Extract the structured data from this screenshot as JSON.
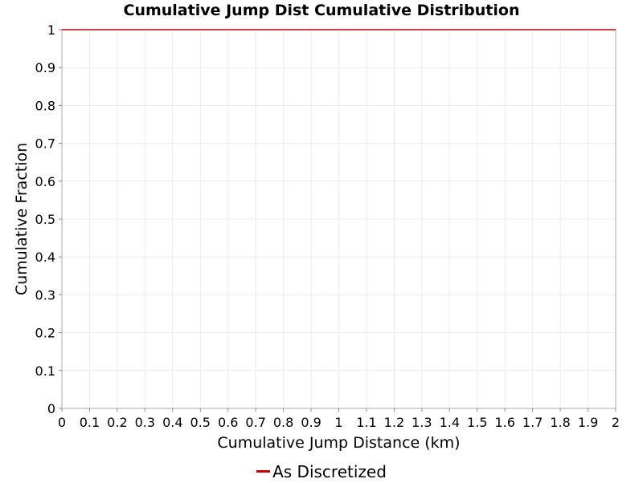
{
  "chart_data": {
    "type": "line",
    "title": "Cumulative Jump Dist Cumulative Distribution",
    "xlabel": "Cumulative Jump Distance (km)",
    "ylabel": "Cumulative Fraction",
    "xlim": [
      0,
      2
    ],
    "ylim": [
      0,
      1
    ],
    "x_ticks": [
      "0",
      "0.1",
      "0.2",
      "0.3",
      "0.4",
      "0.5",
      "0.6",
      "0.7",
      "0.8",
      "0.9",
      "1",
      "1.1",
      "1.2",
      "1.3",
      "1.4",
      "1.5",
      "1.6",
      "1.7",
      "1.8",
      "1.9",
      "2"
    ],
    "y_ticks": [
      "0",
      "0.1",
      "0.2",
      "0.3",
      "0.4",
      "0.5",
      "0.6",
      "0.7",
      "0.8",
      "0.9",
      "1"
    ],
    "grid": true,
    "legend_position": "bottom",
    "series": [
      {
        "name": "As Discretized",
        "color": "#cc0000",
        "x": [
          0,
          2
        ],
        "y": [
          1,
          1
        ]
      }
    ]
  }
}
